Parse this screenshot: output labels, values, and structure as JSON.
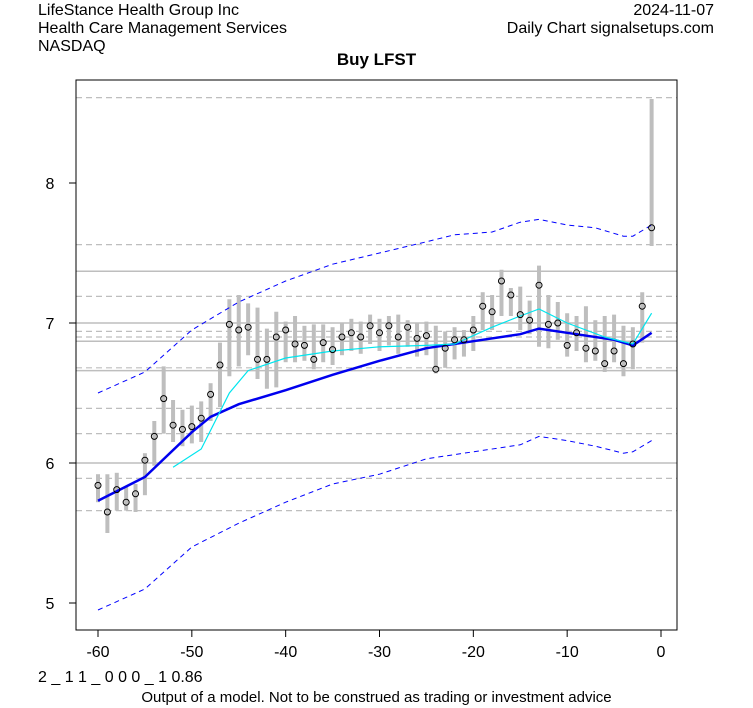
{
  "header": {
    "company": "LifeStance Health Group Inc",
    "industry": "Health Care Management Services",
    "exchange": "NASDAQ",
    "date": "2024-11-07",
    "source": "Daily Chart signalsetups.com"
  },
  "footer": {
    "code": "2 _ 1 1 _ 0 0 0 _ 1 0.86",
    "disclaimer": "Output of a model. Not to be construed as trading or investment advice"
  },
  "chart_data": {
    "type": "line",
    "title": "Buy LFST",
    "xlim": [
      -62,
      1.5
    ],
    "ylim": [
      4.8,
      8.7
    ],
    "xticks": [
      -60,
      -50,
      -40,
      -30,
      -20,
      -10,
      0
    ],
    "yticks": [
      5,
      6,
      7,
      8
    ],
    "grid": "horizontal levels",
    "colors": {
      "bar": "#bebebe",
      "ma": "#0000ee",
      "fast": "#00e5ee",
      "band": "#0000ff",
      "level": "#bebebe"
    },
    "levels_solid": [
      7.37,
      7.0,
      6.87,
      6.66,
      6.0
    ],
    "levels_dashed": [
      8.61,
      7.56,
      7.19,
      6.94,
      6.9,
      6.68,
      6.39,
      6.21,
      5.89,
      5.66
    ],
    "bars": {
      "x": [
        -60,
        -59,
        -58,
        -57,
        -56,
        -55,
        -54,
        -53,
        -52,
        -51,
        -50,
        -49,
        -48,
        -47,
        -46,
        -45,
        -44,
        -43,
        -42,
        -41,
        -40,
        -39,
        -38,
        -37,
        -36,
        -35,
        -34,
        -33,
        -32,
        -31,
        -30,
        -29,
        -28,
        -27,
        -26,
        -25,
        -24,
        -23,
        -22,
        -21,
        -20,
        -19,
        -18,
        -17,
        -16,
        -15,
        -14,
        -13,
        -12,
        -11,
        -10,
        -9,
        -8,
        -7,
        -6,
        -5,
        -4,
        -3,
        -2,
        -1
      ],
      "close": [
        5.84,
        5.65,
        5.81,
        5.72,
        5.78,
        6.02,
        6.19,
        6.46,
        6.27,
        6.24,
        6.26,
        6.32,
        6.49,
        6.7,
        6.99,
        6.95,
        6.97,
        6.74,
        6.74,
        6.9,
        6.95,
        6.85,
        6.84,
        6.74,
        6.86,
        6.81,
        6.9,
        6.93,
        6.9,
        6.98,
        6.93,
        6.98,
        6.9,
        6.97,
        6.89,
        6.91,
        6.67,
        6.82,
        6.88,
        6.88,
        6.95,
        7.12,
        7.08,
        7.3,
        7.2,
        7.06,
        7.02,
        7.27,
        6.99,
        7.0,
        6.84,
        6.93,
        6.82,
        6.8,
        6.71,
        6.8,
        6.71,
        6.85,
        7.12,
        7.68
      ],
      "low": [
        5.72,
        5.5,
        5.66,
        5.66,
        5.65,
        5.77,
        5.98,
        6.21,
        6.15,
        6.12,
        6.14,
        6.15,
        6.3,
        6.4,
        6.62,
        6.69,
        6.77,
        6.6,
        6.53,
        6.54,
        6.72,
        6.72,
        6.73,
        6.67,
        6.72,
        6.7,
        6.77,
        6.8,
        6.78,
        6.85,
        6.8,
        6.84,
        6.78,
        6.83,
        6.76,
        6.77,
        6.64,
        6.68,
        6.74,
        6.76,
        6.8,
        6.95,
        6.95,
        7.05,
        7.05,
        6.95,
        6.92,
        6.83,
        6.82,
        6.88,
        6.76,
        6.8,
        6.72,
        6.73,
        6.65,
        6.72,
        6.62,
        6.67,
        6.86,
        7.55
      ],
      "high": [
        5.92,
        5.92,
        5.93,
        5.83,
        5.85,
        6.07,
        6.3,
        6.69,
        6.45,
        6.38,
        6.41,
        6.44,
        6.57,
        6.86,
        7.17,
        7.2,
        7.14,
        7.11,
        6.96,
        7.08,
        7.01,
        7.05,
        6.98,
        6.99,
        6.99,
        6.97,
        7.0,
        7.03,
        7.01,
        7.06,
        7.03,
        7.05,
        7.06,
        7.02,
        7.0,
        7.01,
        6.98,
        6.94,
        6.97,
        6.95,
        7.05,
        7.22,
        7.2,
        7.38,
        7.25,
        7.26,
        7.16,
        7.41,
        7.2,
        7.15,
        7.07,
        7.05,
        7.12,
        7.02,
        7.05,
        7.06,
        6.98,
        6.97,
        7.22,
        8.6
      ]
    },
    "series": [
      {
        "name": "ma",
        "x": [
          -60,
          -55,
          -50,
          -48,
          -45,
          -40,
          -35,
          -30,
          -25,
          -20,
          -15,
          -13,
          -10,
          -5,
          -3,
          -1
        ],
        "y": [
          5.73,
          5.9,
          6.22,
          6.33,
          6.42,
          6.52,
          6.63,
          6.73,
          6.82,
          6.87,
          6.92,
          6.96,
          6.93,
          6.88,
          6.84,
          6.93
        ]
      },
      {
        "name": "fast",
        "x": [
          -52,
          -49,
          -46,
          -44,
          -40,
          -35,
          -30,
          -25,
          -22,
          -18,
          -15,
          -13,
          -10,
          -6,
          -3,
          -1
        ],
        "y": [
          5.97,
          6.1,
          6.5,
          6.66,
          6.75,
          6.8,
          6.83,
          6.84,
          6.85,
          6.97,
          7.05,
          7.1,
          7.0,
          6.9,
          6.85,
          7.07
        ]
      },
      {
        "name": "upper",
        "x": [
          -60,
          -55,
          -50,
          -45,
          -40,
          -35,
          -30,
          -25,
          -22,
          -18,
          -15,
          -13,
          -10,
          -7,
          -4,
          -3,
          -1
        ],
        "y": [
          6.5,
          6.65,
          6.95,
          7.15,
          7.3,
          7.42,
          7.5,
          7.58,
          7.63,
          7.65,
          7.72,
          7.74,
          7.7,
          7.68,
          7.62,
          7.62,
          7.7
        ]
      },
      {
        "name": "lower",
        "x": [
          -60,
          -55,
          -50,
          -45,
          -40,
          -35,
          -30,
          -25,
          -20,
          -15,
          -13,
          -10,
          -7,
          -4,
          -3,
          -1
        ],
        "y": [
          4.95,
          5.1,
          5.4,
          5.57,
          5.72,
          5.85,
          5.92,
          6.03,
          6.08,
          6.13,
          6.19,
          6.16,
          6.12,
          6.07,
          6.08,
          6.16
        ]
      }
    ]
  }
}
